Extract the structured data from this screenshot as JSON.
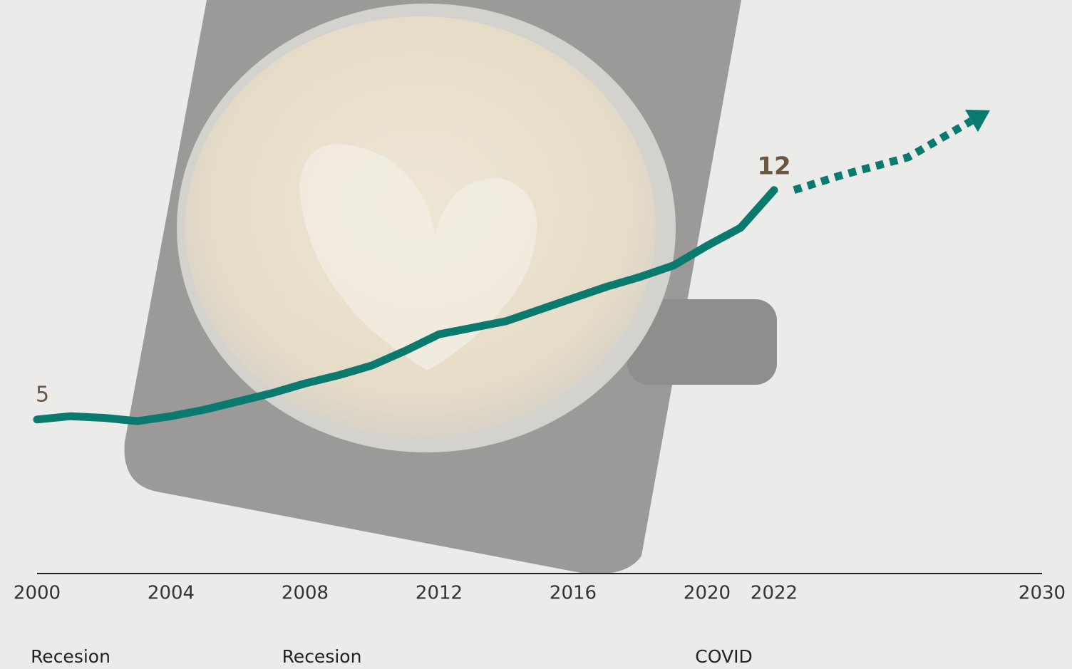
{
  "chart_data": {
    "type": "line",
    "x": [
      2000,
      2001,
      2002,
      2003,
      2004,
      2005,
      2006,
      2007,
      2008,
      2009,
      2010,
      2011,
      2012,
      2013,
      2014,
      2015,
      2016,
      2017,
      2018,
      2019,
      2020,
      2021,
      2022
    ],
    "series": [
      {
        "color": "#0b7a6e",
        "values": [
          5.0,
          5.1,
          5.05,
          4.95,
          5.1,
          5.3,
          5.55,
          5.8,
          6.1,
          6.35,
          6.65,
          7.1,
          7.6,
          7.8,
          8.0,
          8.35,
          8.7,
          9.05,
          9.35,
          9.7,
          10.3,
          10.85,
          12
        ],
        "value_labels": [
          "5",
          null,
          null,
          null,
          null,
          null,
          null,
          null,
          null,
          null,
          null,
          null,
          null,
          null,
          null,
          null,
          null,
          null,
          null,
          null,
          null,
          null,
          "12"
        ]
      }
    ],
    "projection": {
      "color": "#0b7a6e",
      "x": [
        2022,
        2024,
        2026,
        2028.3
      ],
      "values": [
        12,
        12.45,
        13,
        14.35
      ]
    },
    "xlim": [
      2000,
      2030
    ],
    "ylim": [
      0.3,
      17.8
    ],
    "xticks": [
      2000,
      2004,
      2008,
      2012,
      2016,
      2020,
      2022,
      2030
    ],
    "annotations": [
      {
        "text": "Recesion",
        "x": 2001
      },
      {
        "text": "Recesion",
        "x": 2008.5
      },
      {
        "text": "COVID",
        "x": 2020.5
      }
    ]
  }
}
